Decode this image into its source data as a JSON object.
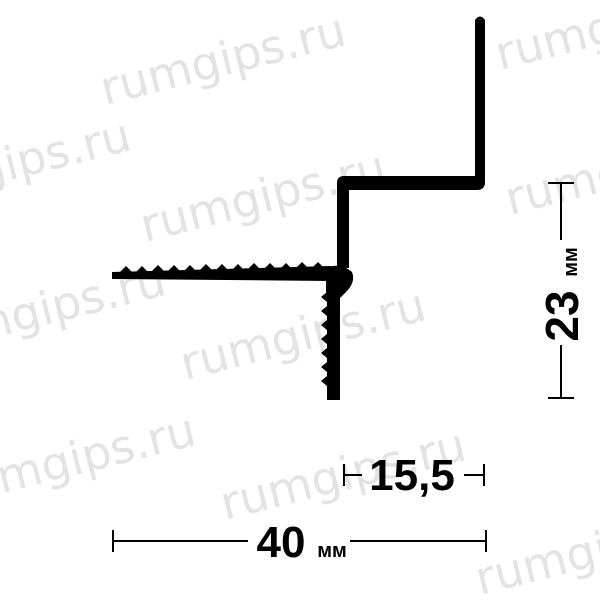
{
  "watermark": "rumgips.ru",
  "dimensions": {
    "height": {
      "value": "23",
      "unit": "мм"
    },
    "offset": {
      "value": "15,5"
    },
    "width": {
      "value": "40",
      "unit": "мм"
    }
  },
  "colors": {
    "profile": "#000000",
    "dimension_lines": "#000000",
    "watermark": "#e3e3e3"
  }
}
